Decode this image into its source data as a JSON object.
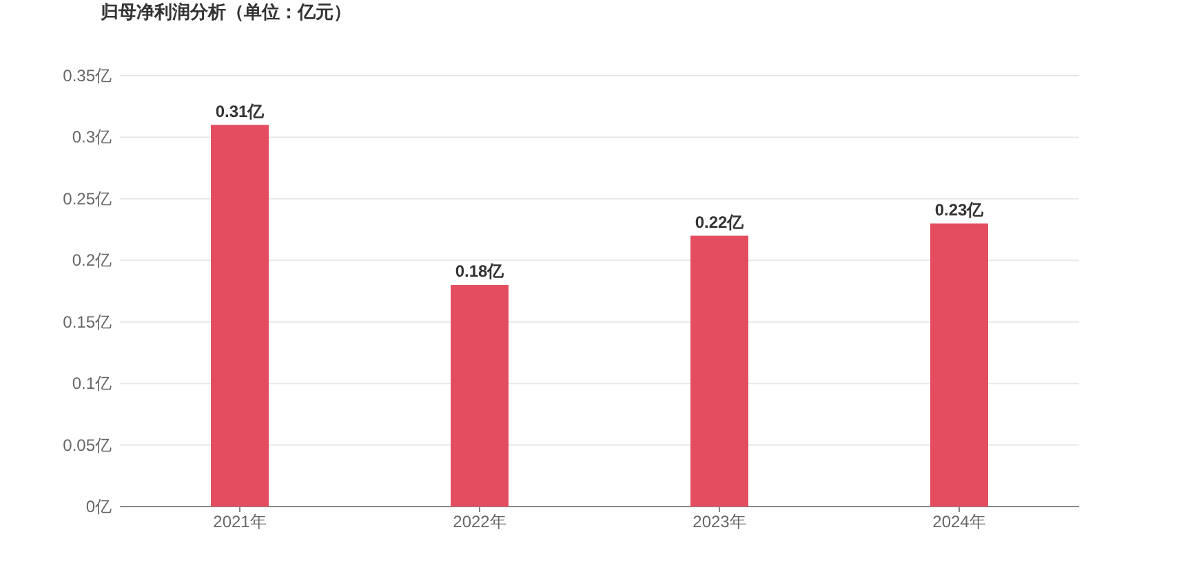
{
  "chart_data": {
    "type": "bar",
    "title": "归母净利润分析（单位：亿元）",
    "categories": [
      "2021年",
      "2022年",
      "2023年",
      "2024年"
    ],
    "values": [
      0.31,
      0.18,
      0.22,
      0.23
    ],
    "value_labels": [
      "0.31亿",
      "0.18亿",
      "0.22亿",
      "0.23亿"
    ],
    "color": "#e34d5f",
    "ylim": [
      0,
      0.35
    ],
    "yticks": [
      {
        "value": 0,
        "label": "0亿"
      },
      {
        "value": 0.05,
        "label": "0.05亿"
      },
      {
        "value": 0.1,
        "label": "0.1亿"
      },
      {
        "value": 0.15,
        "label": "0.15亿"
      },
      {
        "value": 0.2,
        "label": "0.2亿"
      },
      {
        "value": 0.25,
        "label": "0.25亿"
      },
      {
        "value": 0.3,
        "label": "0.3亿"
      },
      {
        "value": 0.35,
        "label": "0.35亿"
      }
    ],
    "grid": "y"
  }
}
